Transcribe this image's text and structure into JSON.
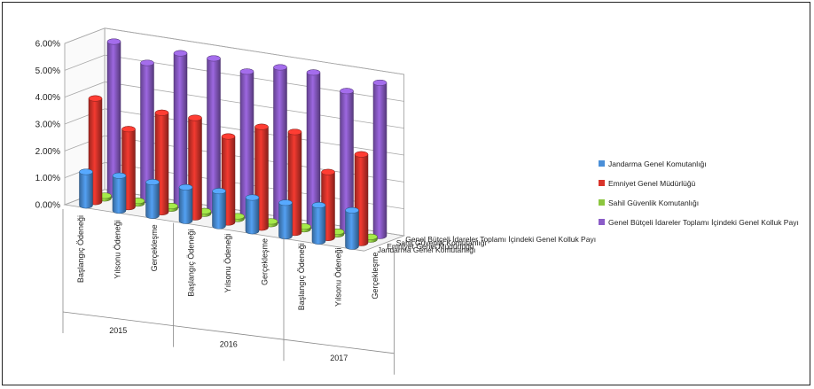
{
  "chart_data": {
    "type": "bar",
    "variant": "3d-column",
    "title": "",
    "xlabel": "",
    "ylabel": "",
    "ylim": [
      0,
      6
    ],
    "y_ticks": [
      "0.00%",
      "1.00%",
      "2.00%",
      "3.00%",
      "4.00%",
      "5.00%",
      "6.00%"
    ],
    "grid": true,
    "legend_position": "right",
    "years": [
      {
        "label": "2015",
        "categories": [
          "Başlangıç Ödeneği",
          "Yılsonu Ödeneği",
          "Gerçekleşme"
        ]
      },
      {
        "label": "2016",
        "categories": [
          "Başlangıç Ödeneği",
          "Yılsonu Ödeneği",
          "Gerçekleşme"
        ]
      },
      {
        "label": "2017",
        "categories": [
          "Başlangıç Ödeneği",
          "Yılsonu Ödeneği",
          "Gerçekleşme"
        ]
      }
    ],
    "categories": [
      "Başlangıç Ödeneği",
      "Yılsonu Ödeneği",
      "Gerçekleşme",
      "Başlangıç Ödeneği",
      "Yılsonu Ödeneği",
      "Gerçekleşme",
      "Başlangıç Ödeneği",
      "Yılsonu Ödeneği",
      "Gerçekleşme"
    ],
    "series": [
      {
        "name": "Jandarma Genel Komutanlığı",
        "color": "#4a8fd8",
        "values": [
          1.25,
          1.3,
          1.25,
          1.25,
          1.3,
          1.25,
          1.25,
          1.35,
          1.35
        ]
      },
      {
        "name": "Emniyet Genel Müdürlüğü",
        "color": "#d9342b",
        "values": [
          3.85,
          2.9,
          3.7,
          3.7,
          3.2,
          3.75,
          3.75,
          2.45,
          3.3
        ]
      },
      {
        "name": "Sahil Güvenlik Komutanlığı",
        "color": "#8cc63f",
        "values": [
          0.1,
          0.1,
          0.1,
          0.1,
          0.1,
          0.1,
          0.1,
          0.1,
          0.1
        ]
      },
      {
        "name": "Genel Bütçeli İdareler Toplamı İçindeki Genel Kolluk Payı",
        "color": "#8b5cc8",
        "values": [
          5.7,
          5.1,
          5.65,
          5.65,
          5.35,
          5.7,
          5.7,
          5.2,
          5.7
        ]
      }
    ]
  }
}
